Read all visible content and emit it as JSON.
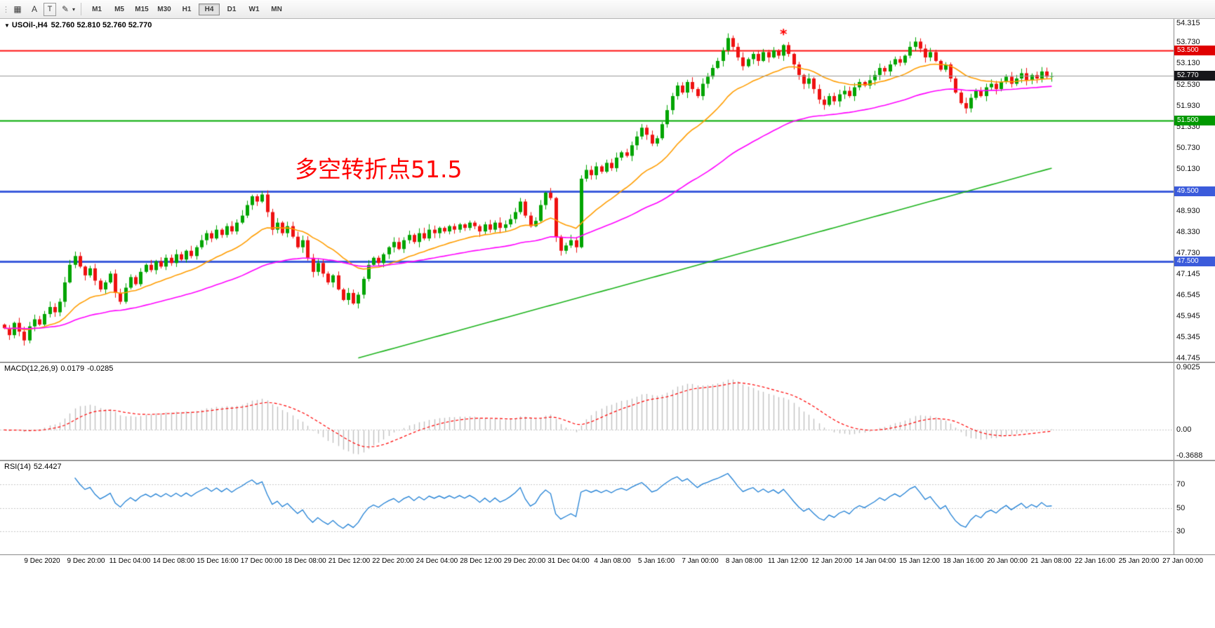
{
  "toolbar": {
    "icons": [
      {
        "name": "toolbar-grip-icon",
        "glyph": "⋮"
      },
      {
        "name": "charts-grid-icon",
        "glyph": "▦"
      },
      {
        "name": "text-label-icon",
        "glyph": "A"
      },
      {
        "name": "text-box-icon",
        "glyph": "T",
        "boxed": true
      },
      {
        "name": "draw-tools-icon",
        "glyph": "✎"
      },
      {
        "name": "dropdown-arrow-icon",
        "glyph": "▾",
        "arrow": true
      }
    ],
    "timeframes": [
      "M1",
      "M5",
      "M15",
      "M30",
      "H1",
      "H4",
      "D1",
      "W1",
      "MN"
    ],
    "active_timeframe": "H4"
  },
  "chart_meta": {
    "menu_glyph": "▼"
  },
  "chart_data": [
    {
      "type": "candlestick",
      "title": "USOil-,H4",
      "ohlc_label": "52.760 52.810 52.760 52.770",
      "annotation": {
        "text": "多空转折点51.5",
        "color": "#ff0000"
      },
      "colors": {
        "up": "#00a400",
        "down": "#ee1111"
      },
      "y_axis": {
        "min": 44.745,
        "max": 54.315,
        "ticks": [
          "54.315",
          "53.730",
          "53.130",
          "52.530",
          "51.930",
          "51.330",
          "50.730",
          "50.130",
          "48.930",
          "48.330",
          "47.730",
          "47.145",
          "46.545",
          "45.945",
          "45.345",
          "44.745"
        ],
        "badges": [
          {
            "label": "53.500",
            "price": 53.5,
            "color": "#e00000"
          },
          {
            "label": "52.770",
            "price": 52.77,
            "color": "#16161a"
          },
          {
            "label": "51.500",
            "price": 51.5,
            "color": "#009900"
          },
          {
            "label": "49.500",
            "price": 49.5,
            "color": "#3b5bdb"
          },
          {
            "label": "47.500",
            "price": 47.5,
            "color": "#3b5bdb"
          }
        ]
      },
      "horizontal_lines": [
        {
          "price": 53.5,
          "color": "#ff1111",
          "width": 2
        },
        {
          "price": 51.5,
          "color": "#00aa00",
          "width": 2
        },
        {
          "price": 49.5,
          "color": "#3b5bdb",
          "width": 3
        },
        {
          "price": 47.5,
          "color": "#3b5bdb",
          "width": 3
        }
      ],
      "current_price_line": {
        "price": 52.77,
        "color": "#999999"
      },
      "moving_averages": [
        {
          "name": "ma-fast",
          "type": "ema",
          "period": 20,
          "color": "#ff9d00"
        },
        {
          "name": "ma-mid",
          "type": "ema",
          "period": 60,
          "color": "#ff00ff"
        },
        {
          "name": "ma-long",
          "type": "ramp",
          "start_bar": 70,
          "start_value": 44.75,
          "end_value": 50.15,
          "color": "#1db31d"
        }
      ],
      "marker": {
        "bar": 154,
        "price": 53.98,
        "glyph": "*",
        "color": "#ff0000"
      },
      "first_open": 45.7,
      "closes": [
        45.6,
        45.4,
        45.75,
        45.5,
        45.25,
        45.65,
        45.85,
        45.7,
        46.0,
        46.2,
        46.05,
        46.35,
        46.9,
        47.4,
        47.65,
        47.35,
        47.1,
        47.3,
        46.95,
        46.7,
        46.9,
        47.15,
        46.6,
        46.35,
        46.75,
        47.05,
        46.85,
        47.2,
        47.4,
        47.25,
        47.5,
        47.35,
        47.6,
        47.45,
        47.7,
        47.55,
        47.8,
        47.65,
        47.9,
        48.1,
        48.3,
        48.15,
        48.4,
        48.25,
        48.5,
        48.35,
        48.6,
        48.8,
        49.1,
        49.35,
        49.2,
        49.4,
        48.9,
        48.4,
        48.6,
        48.3,
        48.5,
        48.2,
        47.9,
        48.1,
        47.6,
        47.2,
        47.45,
        47.15,
        46.9,
        47.1,
        46.7,
        46.4,
        46.6,
        46.3,
        46.55,
        47.0,
        47.4,
        47.6,
        47.45,
        47.7,
        47.9,
        48.05,
        47.85,
        48.1,
        48.25,
        48.05,
        48.3,
        48.15,
        48.4,
        48.3,
        48.45,
        48.35,
        48.5,
        48.4,
        48.55,
        48.45,
        48.6,
        48.5,
        48.35,
        48.55,
        48.4,
        48.6,
        48.45,
        48.55,
        48.7,
        48.9,
        49.2,
        48.8,
        48.5,
        48.65,
        49.1,
        49.45,
        49.3,
        48.2,
        47.8,
        47.95,
        48.1,
        47.9,
        49.85,
        50.1,
        49.95,
        50.2,
        50.05,
        50.3,
        50.15,
        50.45,
        50.6,
        50.5,
        50.8,
        51.05,
        51.3,
        51.1,
        50.85,
        51.0,
        51.4,
        51.8,
        52.2,
        52.5,
        52.3,
        52.6,
        52.4,
        52.2,
        52.55,
        52.75,
        53.0,
        53.2,
        53.5,
        53.85,
        53.6,
        53.3,
        53.05,
        53.25,
        53.4,
        53.2,
        53.45,
        53.3,
        53.5,
        53.35,
        53.65,
        53.4,
        53.1,
        52.8,
        52.55,
        52.7,
        52.4,
        52.1,
        51.95,
        52.2,
        52.05,
        52.25,
        52.35,
        52.2,
        52.45,
        52.6,
        52.5,
        52.65,
        52.8,
        53.0,
        52.9,
        53.1,
        53.25,
        53.15,
        53.35,
        53.6,
        53.75,
        53.55,
        53.3,
        53.45,
        53.2,
        52.95,
        53.1,
        52.7,
        52.3,
        52.0,
        51.85,
        52.15,
        52.35,
        52.2,
        52.45,
        52.55,
        52.4,
        52.6,
        52.75,
        52.55,
        52.7,
        52.85,
        52.65,
        52.8,
        52.7,
        52.9,
        52.75,
        52.77
      ],
      "x_labels": [
        "9 Dec 2020",
        "9 Dec 20:00",
        "11 Dec 04:00",
        "14 Dec 08:00",
        "15 Dec 16:00",
        "17 Dec 00:00",
        "18 Dec 08:00",
        "21 Dec 12:00",
        "22 Dec 20:00",
        "24 Dec 04:00",
        "28 Dec 12:00",
        "29 Dec 20:00",
        "31 Dec 04:00",
        "4 Jan 08:00",
        "5 Jan 16:00",
        "7 Jan 00:00",
        "8 Jan 08:00",
        "11 Jan 12:00",
        "12 Jan 20:00",
        "14 Jan 04:00",
        "15 Jan 12:00",
        "18 Jan 16:00",
        "20 Jan 00:00",
        "21 Jan 08:00",
        "22 Jan 16:00",
        "25 Jan 20:00",
        "27 Jan 00:00"
      ]
    },
    {
      "type": "bar",
      "name": "MACD",
      "label": "MACD(12,26,9)",
      "value_main": "0.0179",
      "value_signal": "-0.0285",
      "params": [
        12,
        26,
        9
      ],
      "y_range": [
        -0.3688,
        0.9025
      ],
      "y_labels": [
        "0.9025",
        "0.00",
        "-0.3688"
      ],
      "colors": {
        "histogram": "#c0c0c0",
        "signal": "#ff0000",
        "levels": "#c8c8c8"
      }
    },
    {
      "type": "line",
      "name": "RSI",
      "label": "RSI(14)",
      "value": "52.4427",
      "period": 14,
      "levels": [
        70,
        50,
        30
      ],
      "level_labels": [
        "70",
        "50",
        "30"
      ],
      "y_range": [
        12,
        88
      ],
      "color": "#1f7fd4",
      "level_color": "#c8c8c8"
    }
  ]
}
